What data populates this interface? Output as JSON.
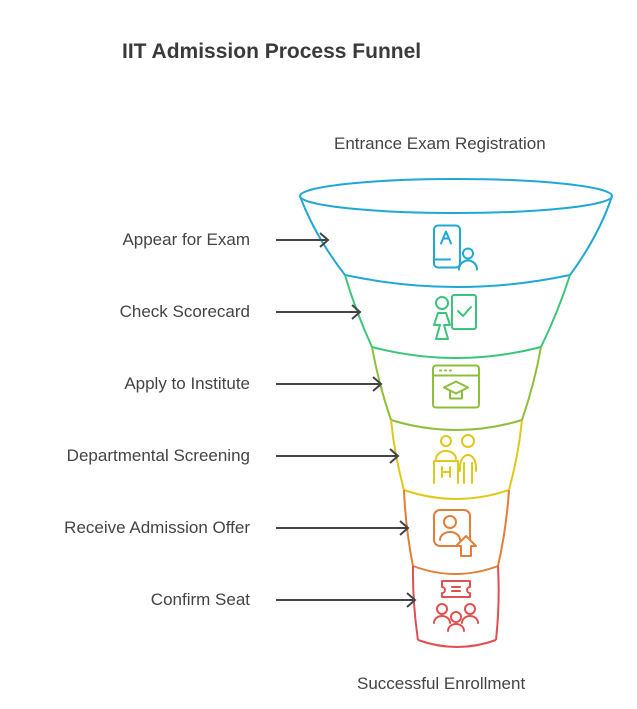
{
  "title": "IIT Admission Process Funnel",
  "top_label": "Entrance Exam Registration",
  "bottom_label": "Successful Enrollment",
  "steps": [
    {
      "label": "Appear for Exam",
      "color": "#1fa8d6",
      "icon": "exam-paper-person-icon"
    },
    {
      "label": "Check Scorecard",
      "color": "#3cc47a",
      "icon": "teacher-board-check-icon"
    },
    {
      "label": "Apply to Institute",
      "color": "#8cbf3a",
      "icon": "browser-graduation-cap-icon"
    },
    {
      "label": "Departmental Screening",
      "color": "#e0c81a",
      "icon": "interview-desk-people-icon"
    },
    {
      "label": "Receive Admission Offer",
      "color": "#e07f3a",
      "icon": "profile-upload-icon"
    },
    {
      "label": "Confirm Seat",
      "color": "#e05050",
      "icon": "ticket-group-icon"
    }
  ]
}
